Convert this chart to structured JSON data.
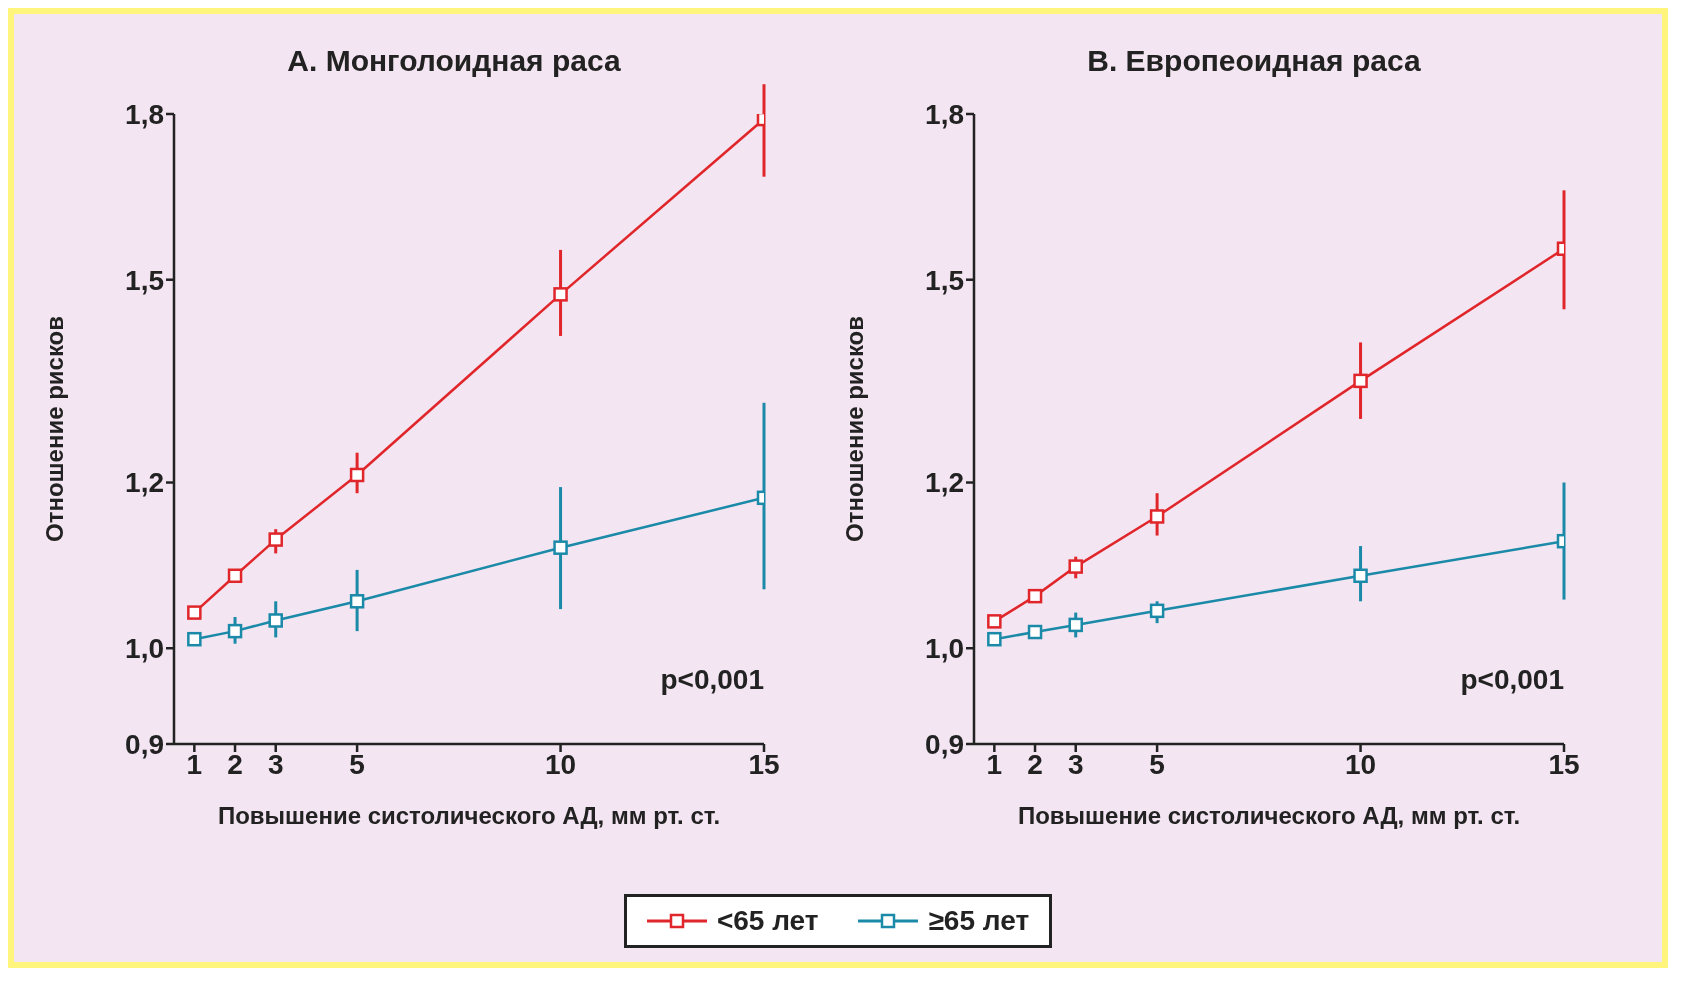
{
  "chart_data": [
    {
      "type": "line",
      "title": "A. Монголоидная раса",
      "xlabel": "Повышение систолического АД, мм рт. ст.",
      "ylabel": "Отношение рисков",
      "x": [
        1,
        2,
        3,
        5,
        10,
        15
      ],
      "xlim": [
        0.5,
        15
      ],
      "xticks": [
        1,
        2,
        3,
        5,
        10,
        15
      ],
      "ylim": [
        0.9,
        1.8
      ],
      "yticks": [
        {
          "value": 0.9,
          "label": "0,9"
        },
        {
          "value": 1.0,
          "label": "1,0"
        },
        {
          "value": 1.2,
          "label": "1,2"
        },
        {
          "value": 1.5,
          "label": "1,5"
        },
        {
          "value": 1.8,
          "label": "1,8"
        }
      ],
      "log": "y",
      "marker": "square",
      "line_style": "solid",
      "legend": "bottom",
      "annotations": [
        "p<0,001"
      ],
      "series": [
        {
          "name": "<65 лет",
          "color": "#e0262a",
          "values": [
            1.04,
            1.083,
            1.127,
            1.21,
            1.476,
            1.79
          ],
          "errors": [
            null,
            [
              1.075,
              1.09
            ],
            [
              1.11,
              1.14
            ],
            [
              1.186,
              1.24
            ],
            [
              1.41,
              1.55
            ],
            [
              1.68,
              1.86
            ]
          ]
        },
        {
          "name": "≥65 лет",
          "color": "#1a8aa8",
          "values": [
            1.01,
            1.019,
            1.031,
            1.053,
            1.117,
            1.18
          ],
          "errors": [
            null,
            [
              1.005,
              1.035
            ],
            [
              1.012,
              1.053
            ],
            [
              1.019,
              1.09
            ],
            [
              1.044,
              1.194
            ],
            [
              1.067,
              1.31
            ]
          ]
        }
      ]
    },
    {
      "type": "line",
      "title": "B. Европеоидная раса",
      "xlabel": "Повышение систолического АД, мм рт. ст.",
      "ylabel": "Отношение рисков",
      "x": [
        1,
        2,
        3,
        5,
        10,
        15
      ],
      "xlim": [
        0.5,
        15
      ],
      "xticks": [
        1,
        2,
        3,
        5,
        10,
        15
      ],
      "ylim": [
        0.9,
        1.8
      ],
      "yticks": [
        {
          "value": 0.9,
          "label": "0,9"
        },
        {
          "value": 1.0,
          "label": "1,0"
        },
        {
          "value": 1.2,
          "label": "1,2"
        },
        {
          "value": 1.5,
          "label": "1,5"
        },
        {
          "value": 1.8,
          "label": "1,8"
        }
      ],
      "log": "y",
      "marker": "square",
      "line_style": "solid",
      "legend": "bottom",
      "annotations": [
        "p<0,001"
      ],
      "series": [
        {
          "color": "#e0262a",
          "values": [
            1.03,
            1.059,
            1.094,
            1.156,
            1.342,
            1.552
          ],
          "errors": [
            null,
            null,
            [
              1.08,
              1.106
            ],
            [
              1.132,
              1.186
            ],
            [
              1.287,
              1.4
            ],
            [
              1.452,
              1.655
            ]
          ]
        },
        {
          "color": "#1a8aa8",
          "values": [
            1.01,
            1.018,
            1.026,
            1.042,
            1.083,
            1.125
          ],
          "errors": [
            null,
            null,
            [
              1.012,
              1.04
            ],
            [
              1.028,
              1.053
            ],
            [
              1.053,
              1.119
            ],
            [
              1.055,
              1.2
            ]
          ]
        }
      ]
    }
  ]
}
